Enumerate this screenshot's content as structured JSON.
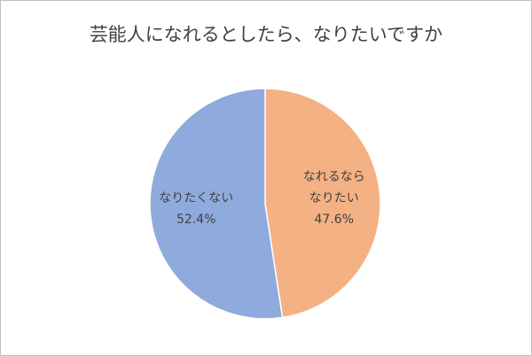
{
  "chart_data": {
    "type": "pie",
    "title": "芸能人になれるとしたら、なりたいですか",
    "categories": [
      "なれるなら\nなりたい",
      "なりたくない"
    ],
    "values": [
      47.6,
      52.4
    ],
    "value_labels": [
      "47.6%",
      "52.4%"
    ],
    "colors": [
      "#f4b183",
      "#8faadc"
    ]
  }
}
